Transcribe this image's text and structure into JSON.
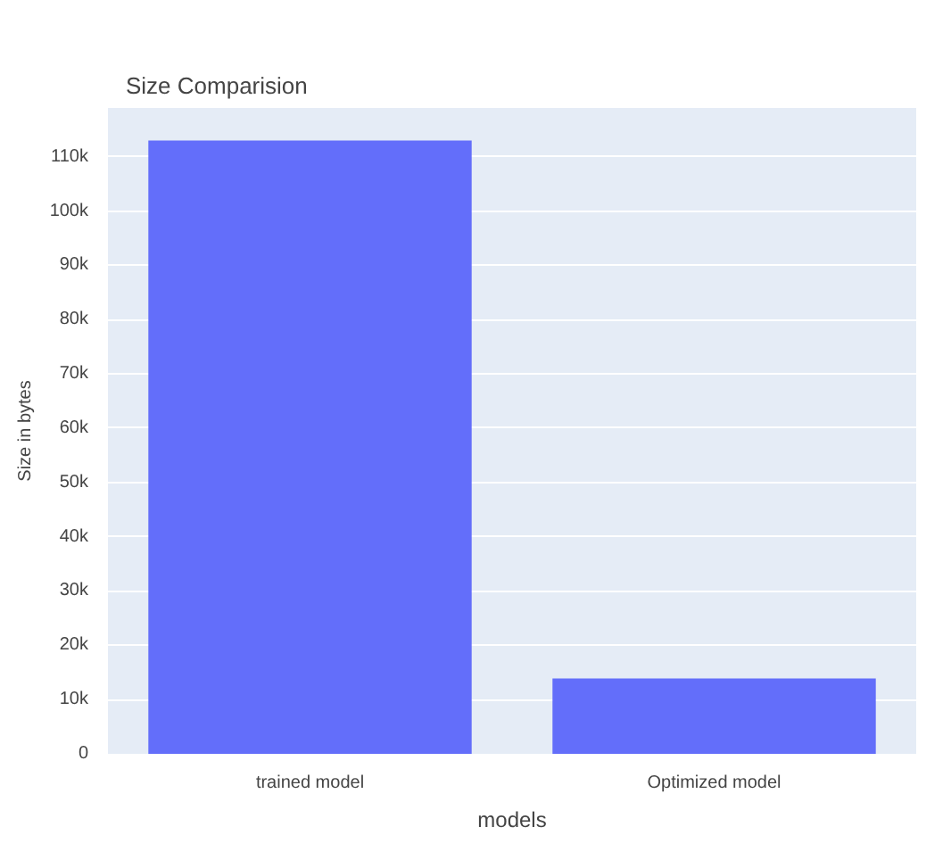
{
  "chart_data": {
    "type": "bar",
    "title": "Size Comparision",
    "xlabel": "models",
    "ylabel": "Size in bytes",
    "categories": [
      "trained model",
      "Optimized model"
    ],
    "values": [
      113000,
      13900
    ],
    "color": "#636efa",
    "ylim": [
      0,
      119000
    ],
    "yticks": [
      {
        "value": 0,
        "label": "0"
      },
      {
        "value": 10000,
        "label": "10k"
      },
      {
        "value": 20000,
        "label": "20k"
      },
      {
        "value": 30000,
        "label": "30k"
      },
      {
        "value": 40000,
        "label": "40k"
      },
      {
        "value": 50000,
        "label": "50k"
      },
      {
        "value": 60000,
        "label": "60k"
      },
      {
        "value": 70000,
        "label": "70k"
      },
      {
        "value": 80000,
        "label": "80k"
      },
      {
        "value": 90000,
        "label": "90k"
      },
      {
        "value": 100000,
        "label": "100k"
      },
      {
        "value": 110000,
        "label": "110k"
      }
    ],
    "grid": "y"
  }
}
